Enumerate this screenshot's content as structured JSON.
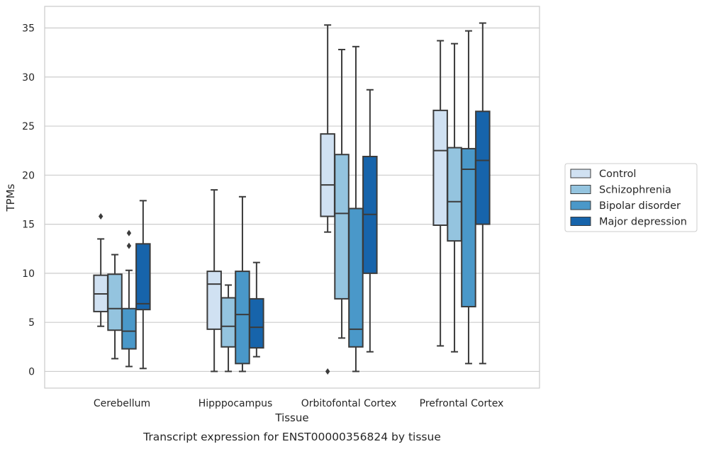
{
  "chart_data": {
    "type": "box",
    "xlabel": "Tissue",
    "ylabel": "TPMs",
    "caption": "Transcript expression for ENST00000356824 by tissue",
    "ylim": [
      -1.7,
      37.2
    ],
    "yticks": [
      0,
      5,
      10,
      15,
      20,
      25,
      30,
      35
    ],
    "grid": true,
    "legend_position": "right",
    "categories": [
      "Cerebellum",
      "Hipppocampus",
      "Orbitofontal Cortex",
      "Prefrontal Cortex"
    ],
    "series": [
      {
        "name": "Control",
        "color": "#d0e1f2",
        "boxes": [
          {
            "whislo": 4.6,
            "q1": 6.1,
            "med": 7.9,
            "q3": 9.8,
            "whishi": 13.5,
            "fliers": [
              15.8
            ]
          },
          {
            "whislo": 0.0,
            "q1": 4.3,
            "med": 8.9,
            "q3": 10.2,
            "whishi": 18.5,
            "fliers": []
          },
          {
            "whislo": 14.2,
            "q1": 15.8,
            "med": 19.0,
            "q3": 24.2,
            "whishi": 35.3,
            "fliers": [
              0.0
            ]
          },
          {
            "whislo": 2.6,
            "q1": 14.9,
            "med": 22.5,
            "q3": 26.6,
            "whishi": 33.7,
            "fliers": []
          }
        ]
      },
      {
        "name": "Schizophrenia",
        "color": "#94c4df",
        "boxes": [
          {
            "whislo": 1.3,
            "q1": 4.2,
            "med": 6.4,
            "q3": 9.9,
            "whishi": 11.9,
            "fliers": []
          },
          {
            "whislo": 0.0,
            "q1": 2.5,
            "med": 4.6,
            "q3": 7.5,
            "whishi": 8.8,
            "fliers": []
          },
          {
            "whislo": 3.4,
            "q1": 7.4,
            "med": 16.1,
            "q3": 22.1,
            "whishi": 32.8,
            "fliers": []
          },
          {
            "whislo": 2.0,
            "q1": 13.3,
            "med": 17.3,
            "q3": 22.8,
            "whishi": 33.4,
            "fliers": []
          }
        ]
      },
      {
        "name": "Bipolar disorder",
        "color": "#4a98c9",
        "boxes": [
          {
            "whislo": 0.5,
            "q1": 2.3,
            "med": 4.1,
            "q3": 6.4,
            "whishi": 10.3,
            "fliers": [
              12.8,
              14.1
            ]
          },
          {
            "whislo": 0.0,
            "q1": 0.8,
            "med": 5.8,
            "q3": 10.2,
            "whishi": 17.8,
            "fliers": []
          },
          {
            "whislo": 0.0,
            "q1": 2.5,
            "med": 4.3,
            "q3": 16.6,
            "whishi": 33.1,
            "fliers": []
          },
          {
            "whislo": 0.8,
            "q1": 6.6,
            "med": 20.6,
            "q3": 22.7,
            "whishi": 34.7,
            "fliers": []
          }
        ]
      },
      {
        "name": "Major depression",
        "color": "#1764ab",
        "boxes": [
          {
            "whislo": 0.3,
            "q1": 6.3,
            "med": 6.9,
            "q3": 13.0,
            "whishi": 17.4,
            "fliers": []
          },
          {
            "whislo": 1.5,
            "q1": 2.4,
            "med": 4.5,
            "q3": 7.4,
            "whishi": 11.1,
            "fliers": []
          },
          {
            "whislo": 2.0,
            "q1": 10.0,
            "med": 16.0,
            "q3": 21.9,
            "whishi": 28.7,
            "fliers": []
          },
          {
            "whislo": 0.8,
            "q1": 15.0,
            "med": 21.5,
            "q3": 26.5,
            "whishi": 35.5,
            "fliers": []
          }
        ]
      }
    ]
  }
}
